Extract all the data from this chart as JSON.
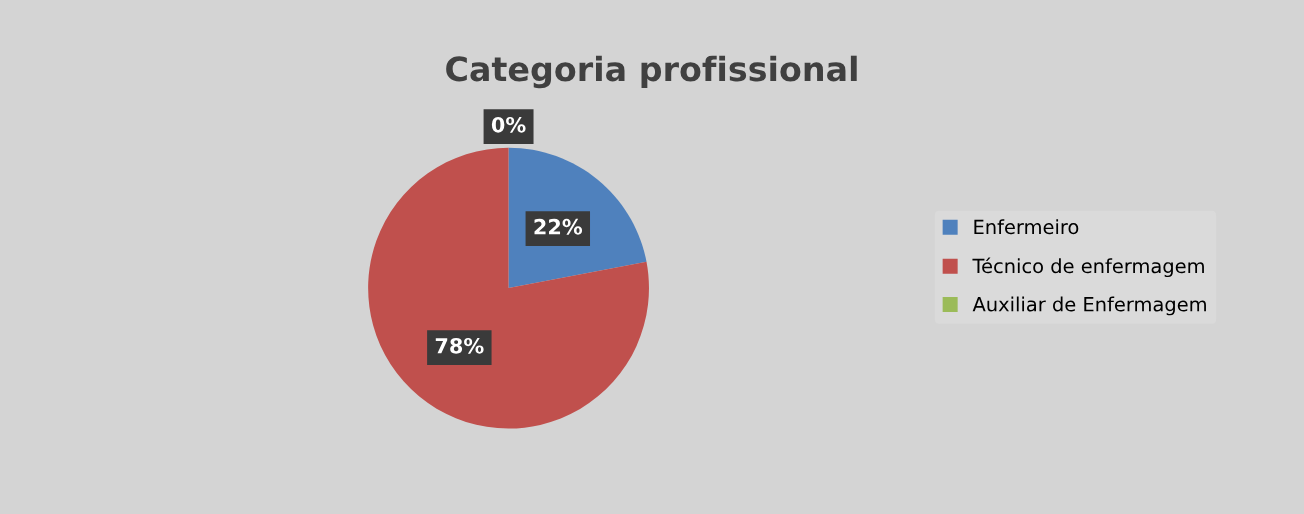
{
  "chart_data": {
    "type": "pie",
    "title": "Categoria profissional",
    "categories": [
      "Enfermeiro",
      "Técnico de enfermagem",
      "Auxiliar de Enfermagem"
    ],
    "values": [
      22,
      78,
      0
    ],
    "colors": [
      "#4f81bd",
      "#c0504d",
      "#9bbb59"
    ],
    "value_labels": [
      "22%",
      "78%",
      "0%"
    ],
    "legend": "right"
  }
}
